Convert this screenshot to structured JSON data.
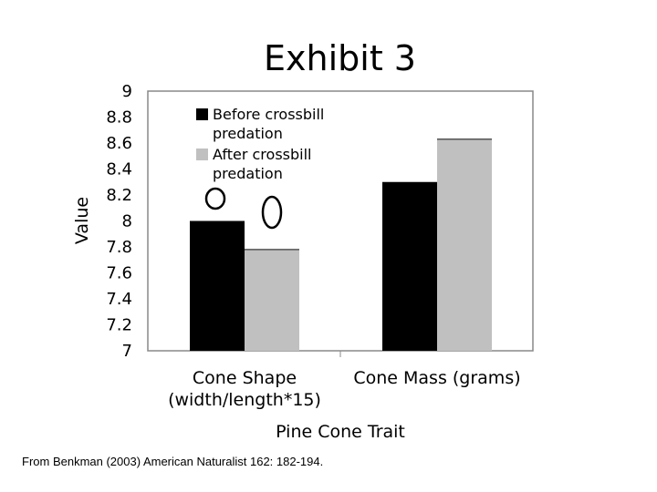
{
  "slide": {
    "title": "Exhibit 3",
    "source": "From Benkman (2003) American Naturalist 162: 182-194."
  },
  "colors": {
    "before": "#000000",
    "after": "#c0c0c0",
    "frame": "#888888"
  },
  "chart_data": {
    "type": "bar",
    "title": "",
    "categories": [
      [
        "Cone Shape",
        "(width/length*15)"
      ],
      [
        "Cone Mass (grams)"
      ]
    ],
    "series": [
      {
        "name": "Before crossbill predation",
        "legend_lines": [
          "Before crossbill",
          "predation"
        ],
        "values": [
          8.0,
          8.3
        ]
      },
      {
        "name": "After crossbill predation",
        "legend_lines": [
          "After crossbill",
          "predation"
        ],
        "values": [
          7.78,
          8.63
        ]
      }
    ],
    "xlabel": "Pine Cone Trait",
    "ylabel": "Value",
    "ylim": [
      7,
      9
    ],
    "yticks": [
      "9",
      "8.8",
      "8.6",
      "8.4",
      "8.2",
      "8",
      "7.8",
      "7.6",
      "7.4",
      "7.2",
      "7"
    ],
    "annotations": [
      "circle above before bar (Cone Shape)",
      "oval above after bar (Cone Shape)"
    ],
    "legend_position": "top-left"
  }
}
